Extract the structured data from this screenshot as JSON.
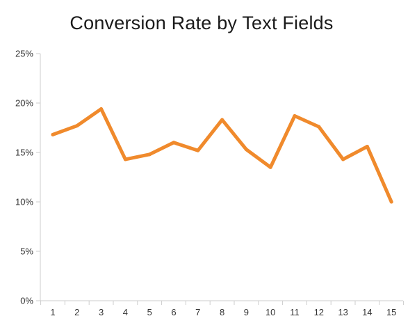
{
  "chart_data": {
    "type": "line",
    "title": "Conversion Rate by Text Fields",
    "xlabel": "",
    "ylabel": "",
    "categories": [
      "1",
      "2",
      "3",
      "4",
      "5",
      "6",
      "7",
      "8",
      "9",
      "10",
      "11",
      "12",
      "13",
      "14",
      "15"
    ],
    "series": [
      {
        "values": [
          16.8,
          17.7,
          19.4,
          14.3,
          14.8,
          16.0,
          15.2,
          18.3,
          15.3,
          13.5,
          18.7,
          17.6,
          14.3,
          15.6,
          10.0
        ]
      }
    ],
    "y_ticks": [
      "0%",
      "5%",
      "10%",
      "15%",
      "20%",
      "25%"
    ],
    "ylim": [
      0,
      25
    ],
    "grid": false,
    "line_color": "#f08a2c"
  }
}
